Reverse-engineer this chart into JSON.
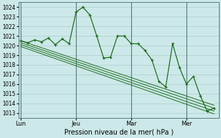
{
  "background_color": "#cce8e8",
  "grid_color": "#aacccc",
  "line_color": "#1a6b1a",
  "marker_color": "#1a6b1a",
  "xlabel": "Pression niveau de la mer( hPa )",
  "ylim": [
    1012.5,
    1024.5
  ],
  "yticks": [
    1013,
    1014,
    1015,
    1016,
    1017,
    1018,
    1019,
    1020,
    1021,
    1022,
    1023,
    1024
  ],
  "xtick_labels": [
    "Lun",
    "Jeu",
    "Mar",
    "Mer"
  ],
  "xtick_positions": [
    0,
    24,
    48,
    72
  ],
  "vline_positions": [
    0,
    24,
    48,
    72
  ],
  "xlim": [
    -1,
    86
  ],
  "main_series_x": [
    0,
    3,
    6,
    9,
    12,
    15,
    18,
    21,
    24,
    27,
    30,
    33,
    36,
    39,
    42,
    45,
    48,
    51,
    54,
    57,
    60,
    63,
    66,
    69,
    72,
    75,
    78,
    81,
    84
  ],
  "main_series_y": [
    1020.5,
    1020.3,
    1020.6,
    1020.4,
    1020.8,
    1020.1,
    1020.7,
    1020.2,
    1023.5,
    1024.0,
    1023.2,
    1021.0,
    1018.7,
    1018.8,
    1021.0,
    1021.0,
    1020.2,
    1020.2,
    1019.5,
    1018.5,
    1016.3,
    1015.7,
    1020.2,
    1017.7,
    1016.0,
    1016.8,
    1014.8,
    1013.2,
    1013.5
  ],
  "trend_lines": [
    {
      "x": [
        0,
        84
      ],
      "y": [
        1020.5,
        1013.8
      ]
    },
    {
      "x": [
        0,
        84
      ],
      "y": [
        1020.3,
        1013.5
      ]
    },
    {
      "x": [
        0,
        84
      ],
      "y": [
        1020.1,
        1013.2
      ]
    },
    {
      "x": [
        0,
        84
      ],
      "y": [
        1019.9,
        1012.9
      ]
    }
  ]
}
